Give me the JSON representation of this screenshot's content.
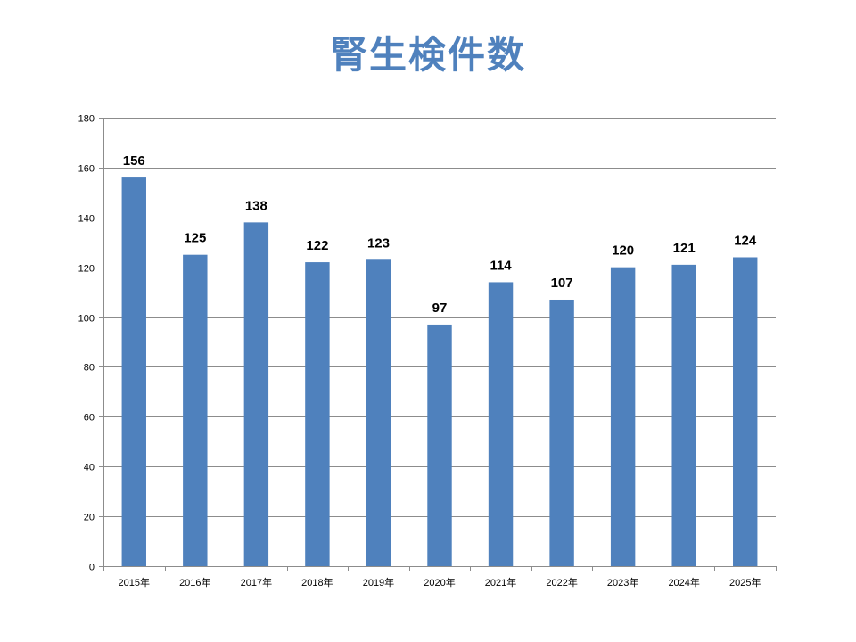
{
  "chart_data": {
    "type": "bar",
    "title": "腎生検件数",
    "categories": [
      "2015年",
      "2016年",
      "2017年",
      "2018年",
      "2019年",
      "2020年",
      "2021年",
      "2022年",
      "2023年",
      "2024年",
      "2025年"
    ],
    "values": [
      156,
      125,
      138,
      122,
      123,
      97,
      114,
      107,
      120,
      121,
      124
    ],
    "y_ticks": [
      "0",
      "20",
      "40",
      "60",
      "80",
      "100",
      "120",
      "140",
      "160",
      "180"
    ],
    "ylim": [
      0,
      180
    ],
    "ytick_step": 20,
    "grid": true,
    "legend": "none",
    "bar_color": "#4f81bd",
    "grid_color": "#8c8c8c",
    "title_color": "#4f81bd"
  }
}
